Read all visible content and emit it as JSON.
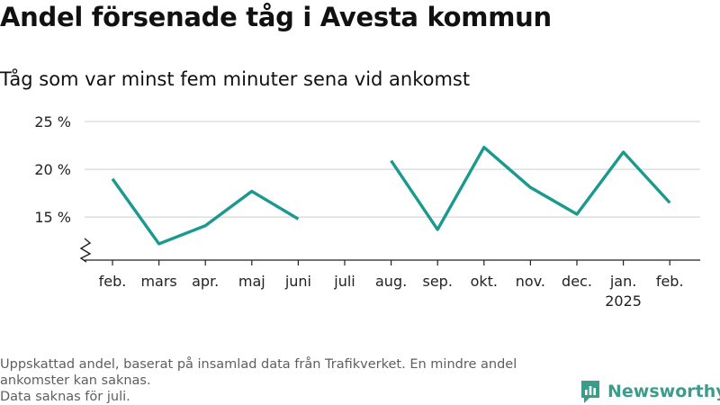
{
  "title": "Andel försenade tåg i Avesta kommun",
  "subtitle": "Tåg som var minst fem minuter sena vid ankomst",
  "footnote": [
    "Uppskattad andel, baserat på insamlad data från Trafikverket. En mindre andel",
    "ankomster kan saknas.",
    "Data saknas för juli."
  ],
  "logo": {
    "text": "Newsworthy",
    "icon": "newsworthy-chart-logo-icon"
  },
  "colors": {
    "line": "#1a9a8e",
    "grid": "#d9d9d9",
    "axis": "#222222",
    "brand": "#3c9c8c"
  },
  "chart_data": {
    "type": "line",
    "title": "",
    "xlabel": "",
    "ylabel": "",
    "categories": [
      "feb.",
      "mars",
      "apr.",
      "maj",
      "juni",
      "juli",
      "aug.",
      "sep.",
      "okt.",
      "nov.",
      "dec.",
      "jan.",
      "feb."
    ],
    "category_sublabels": [
      "",
      "",
      "",
      "",
      "",
      "",
      "",
      "",
      "",
      "",
      "",
      "2025",
      ""
    ],
    "series": [
      {
        "values": [
          19.0,
          12.2,
          14.1,
          17.7,
          14.8,
          null,
          20.9,
          13.7,
          22.3,
          18.1,
          15.3,
          21.8,
          16.5
        ]
      }
    ],
    "yticks": [
      15,
      20,
      25
    ],
    "ytick_labels": [
      "15 %",
      "20 %",
      "25 %"
    ],
    "ylim": [
      10.5,
      25
    ],
    "axis_break": true,
    "grid": true,
    "legend": "none"
  }
}
